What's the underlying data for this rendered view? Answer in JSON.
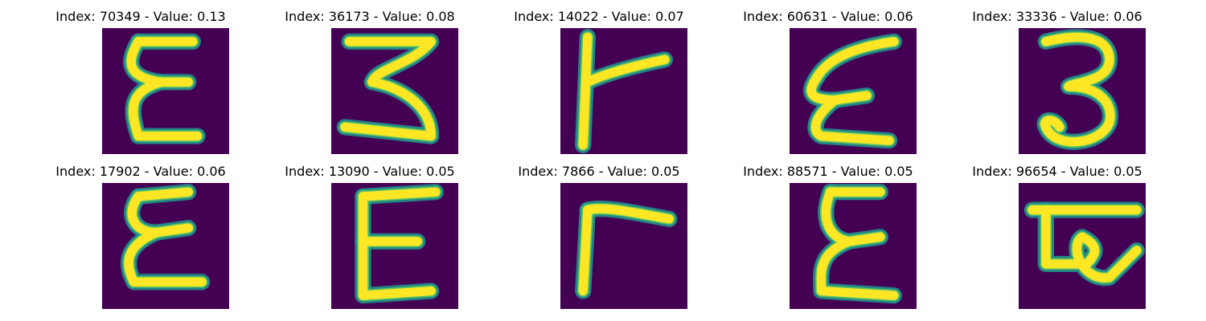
{
  "colors": {
    "background": "#440154",
    "stroke": "#fde725",
    "stroke_edge": "#21918c"
  },
  "panels": [
    {
      "title": "Index: 70349 - Value: 0.13",
      "glyph": "Ɛ"
    },
    {
      "title": "Index: 36173 - Value: 0.08",
      "glyph": "Ʒ"
    },
    {
      "title": "Index: 14022 - Value: 0.07",
      "glyph": "Ͱ"
    },
    {
      "title": "Index: 60631 - Value: 0.06",
      "glyph": "Ɛ"
    },
    {
      "title": "Index: 33336 - Value: 0.06",
      "glyph": "3"
    },
    {
      "title": "Index: 17902 - Value: 0.06",
      "glyph": "Ɛ"
    },
    {
      "title": "Index: 13090 - Value: 0.05",
      "glyph": "E"
    },
    {
      "title": "Index: 7866 - Value: 0.05",
      "glyph": "r"
    },
    {
      "title": "Index: 88571 - Value: 0.05",
      "glyph": "Ɛ"
    },
    {
      "title": "Index: 96654 - Value: 0.05",
      "glyph": "Ɐ"
    }
  ]
}
